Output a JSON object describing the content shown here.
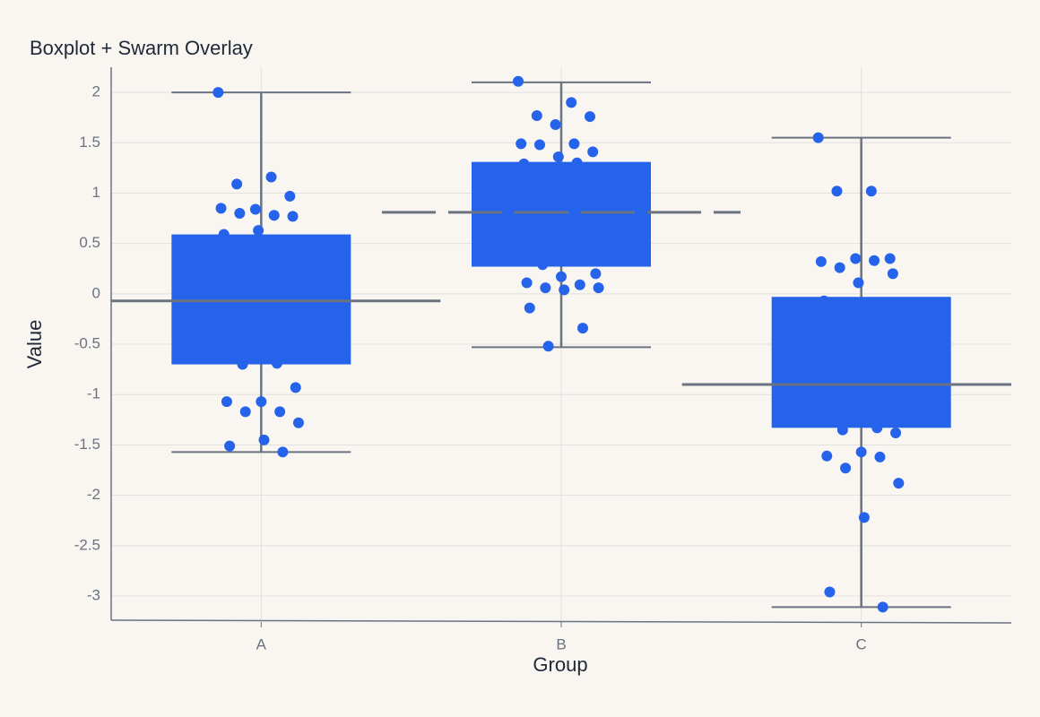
{
  "chart_data": {
    "type": "box",
    "title": "Boxplot + Swarm Overlay",
    "x_label": "Group",
    "y_label": "Value",
    "categories": [
      "A",
      "B",
      "C"
    ],
    "stats": {
      "whisker_low": [
        -1.57,
        -0.53,
        -3.11
      ],
      "q1": [
        -0.7,
        0.27,
        -1.33
      ],
      "median": [
        -0.07,
        0.81,
        -0.9
      ],
      "q3": [
        0.59,
        1.31,
        -0.03
      ],
      "whisker_high": [
        2.0,
        2.1,
        1.55
      ]
    },
    "points": [
      [
        2.0,
        1.16,
        1.09,
        0.97,
        0.84,
        0.85,
        0.78,
        0.8,
        0.77,
        0.63,
        0.59,
        -0.69,
        -0.7,
        -0.93,
        -1.07,
        -1.07,
        -1.17,
        -1.17,
        -1.28,
        -1.45,
        -1.51,
        -1.57
      ],
      [
        2.11,
        1.9,
        1.77,
        1.76,
        1.68,
        1.49,
        1.49,
        1.48,
        1.41,
        1.36,
        1.29,
        1.3,
        0.29,
        0.2,
        0.17,
        0.11,
        0.09,
        0.06,
        0.06,
        0.04,
        -0.14,
        -0.34,
        -0.52
      ],
      [
        1.55,
        1.02,
        1.02,
        0.35,
        0.35,
        0.32,
        0.33,
        0.26,
        0.2,
        0.11,
        -0.07,
        -1.33,
        -1.35,
        -1.38,
        -1.57,
        -1.61,
        -1.62,
        -1.73,
        -1.88,
        -2.22,
        -2.96,
        -3.11
      ]
    ],
    "color": "#2563eb",
    "whisker_color": "#6b7280",
    "ylim": [
      -3.24,
      2.25
    ],
    "yticks": [
      -3,
      -2.5,
      -2,
      -1.5,
      -1,
      -0.5,
      0,
      0.5,
      1,
      1.5,
      2
    ],
    "grid": true
  }
}
